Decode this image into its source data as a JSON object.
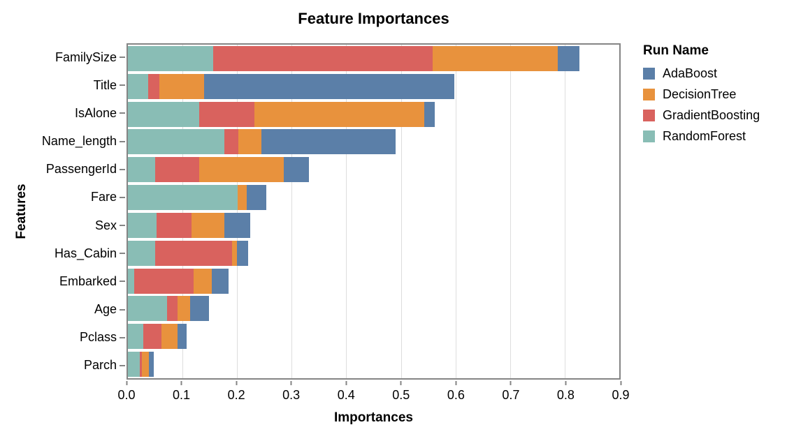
{
  "chart_data": {
    "type": "bar",
    "stacked": true,
    "orientation": "horizontal",
    "title": "Feature Importances",
    "xlabel": "Importances",
    "ylabel": "Features",
    "legend_title": "Run Name",
    "legend_position": "right",
    "grid": true,
    "xlim": [
      0,
      0.9
    ],
    "x_ticks": [
      "0.0",
      "0.1",
      "0.2",
      "0.3",
      "0.4",
      "0.5",
      "0.6",
      "0.7",
      "0.8",
      "0.9"
    ],
    "categories": [
      "FamilySize",
      "Title",
      "IsAlone",
      "Name_length",
      "PassengerId",
      "Fare",
      "Sex",
      "Has_Cabin",
      "Embarked",
      "Age",
      "Pclass",
      "Parch"
    ],
    "stack_order_left_to_right": [
      "RandomForest",
      "GradientBoosting",
      "DecisionTree",
      "AdaBoost"
    ],
    "series": [
      {
        "name": "AdaBoost",
        "color": "#5b7fa8",
        "values": [
          0.04,
          0.459,
          0.019,
          0.245,
          0.046,
          0.035,
          0.047,
          0.02,
          0.031,
          0.035,
          0.017,
          0.008
        ]
      },
      {
        "name": "DecisionTree",
        "color": "#e8923d",
        "values": [
          0.229,
          0.082,
          0.311,
          0.043,
          0.154,
          0.017,
          0.06,
          0.009,
          0.034,
          0.023,
          0.029,
          0.014
        ]
      },
      {
        "name": "GradientBoosting",
        "color": "#d9625e",
        "values": [
          0.402,
          0.02,
          0.102,
          0.025,
          0.081,
          0.0,
          0.064,
          0.141,
          0.108,
          0.019,
          0.034,
          0.003
        ]
      },
      {
        "name": "RandomForest",
        "color": "#89bdb5",
        "values": [
          0.156,
          0.037,
          0.13,
          0.177,
          0.05,
          0.201,
          0.053,
          0.05,
          0.012,
          0.072,
          0.028,
          0.022
        ]
      }
    ],
    "bar_totals": [
      0.827,
      0.598,
      0.562,
      0.49,
      0.331,
      0.253,
      0.224,
      0.22,
      0.185,
      0.149,
      0.108,
      0.047
    ],
    "colors": {
      "grid": "#dddddd",
      "axis": "#858585",
      "text": "#000000",
      "background": "#ffffff"
    }
  }
}
